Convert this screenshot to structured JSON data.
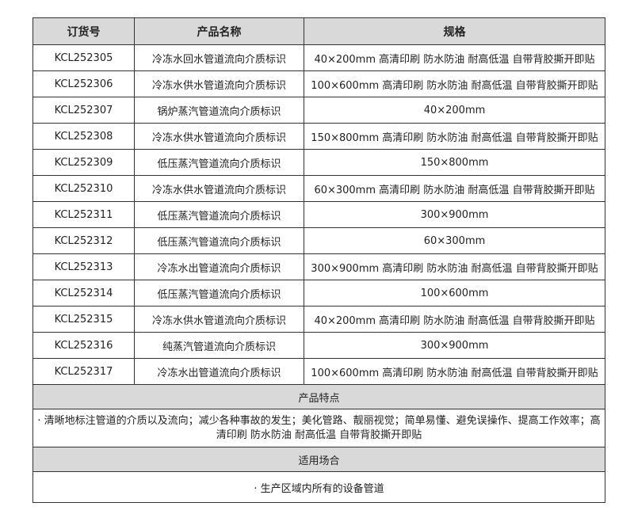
{
  "headers": [
    "订货号",
    "产品名称",
    "规格"
  ],
  "rows": [
    [
      "KCL252305",
      "冷冻水回水管道流向介质标识",
      "40×200mm 高清印刷 防水防油 耐高低温 自带背胶撕开即贴"
    ],
    [
      "KCL252306",
      "冷冻水供水管道流向介质标识",
      "100×600mm 高清印刷 防水防油 耐高低温 自带背胶撕开即贴"
    ],
    [
      "KCL252307",
      "锅炉蒸汽管道流向介质标识",
      "40×200mm"
    ],
    [
      "KCL252308",
      "冷冻水供水管道流向介质标识",
      "150×800mm 高清印刷 防水防油 耐高低温 自带背胶撕开即贴"
    ],
    [
      "KCL252309",
      "低压蒸汽管道流向介质标识",
      "150×800mm"
    ],
    [
      "KCL252310",
      "冷冻水供水管道流向介质标识",
      "60×300mm 高清印刷 防水防油 耐高低温 自带背胶撕开即贴"
    ],
    [
      "KCL252311",
      "低压蒸汽管道流向介质标识",
      "300×900mm"
    ],
    [
      "KCL252312",
      "低压蒸汽管道流向介质标识",
      "60×300mm"
    ],
    [
      "KCL252313",
      "冷冻水出管道流向介质标识",
      "300×900mm 高清印刷 防水防油 耐高低温 自带背胶撕开即贴"
    ],
    [
      "KCL252314",
      "低压蒸汽管道流向介质标识",
      "100×600mm"
    ],
    [
      "KCL252315",
      "冷冻水供水管道流向介质标识",
      "40×200mm 高清印刷 防水防油 耐高低温 自带背胶撕开即贴"
    ],
    [
      "KCL252316",
      "纯蒸汽管道流向介质标识",
      "300×900mm"
    ],
    [
      "KCL252317",
      "冷冻水出管道流向介质标识",
      "100×600mm 高清印刷 防水防油 耐高低温 自带背胶撕开即贴"
    ]
  ],
  "features": {
    "title": "产品特点",
    "text": "· 清晰地标注管道的介质以及流向；减少各种事故的发生；美化管路、靓丽视觉；简单易懂、避免误操作、提高工作效率；高清印刷 防水防油 耐高低温 自带背胶撕开即贴"
  },
  "usage": {
    "title": "适用场合",
    "text": "· 生产区域内所有的设备管道"
  }
}
